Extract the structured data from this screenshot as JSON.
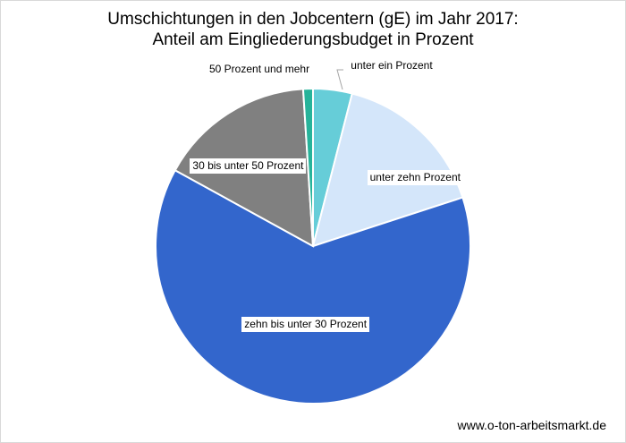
{
  "chart_data": {
    "type": "pie",
    "title": "Umschichtungen in den Jobcentern (gE) im Jahr 2017:",
    "subtitle": "Anteil am Eingliederungsbudget in Prozent",
    "slices": [
      {
        "label": "unter ein Prozent",
        "value": 4,
        "color": "#66cdd8"
      },
      {
        "label": "unter zehn Prozent",
        "value": 16,
        "color": "#d4e6fa"
      },
      {
        "label": "zehn bis unter 30 Prozent",
        "value": 63,
        "color": "#3366cc"
      },
      {
        "label": "30 bis unter 50 Prozent",
        "value": 16,
        "color": "#808080"
      },
      {
        "label": "50 Prozent und mehr",
        "value": 1,
        "color": "#26b39a"
      }
    ],
    "start_angle_deg": 0,
    "direction": "clockwise"
  },
  "source": "www.o-ton-arbeitsmarkt.de"
}
